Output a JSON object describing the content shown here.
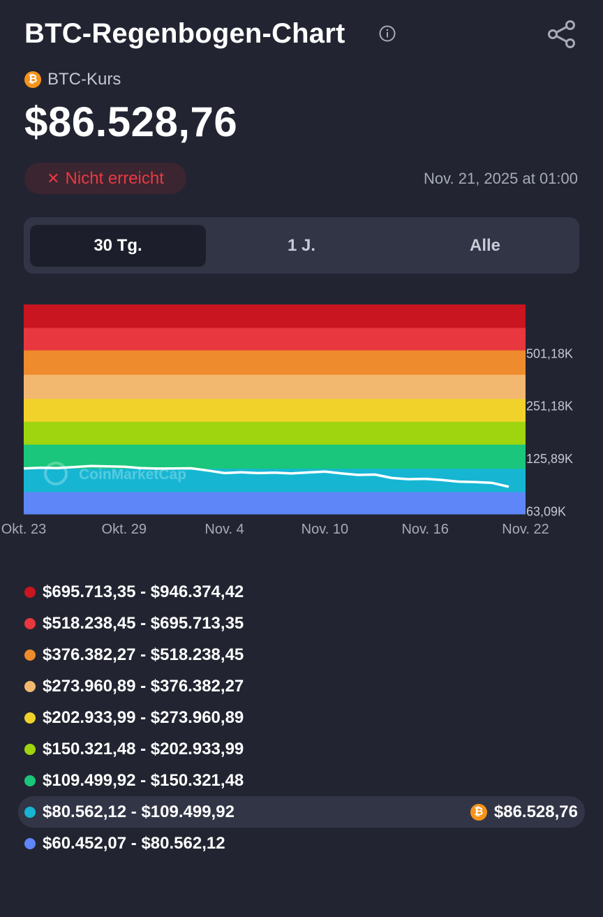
{
  "header": {
    "title": "BTC-Regenbogen-Chart",
    "info_icon": "info-circle-icon",
    "share_icon": "share-icon"
  },
  "price": {
    "coin_icon_glyph": "₿",
    "label": "BTC-Kurs",
    "value": "$86.528,76"
  },
  "status": {
    "icon": "✕",
    "label": "Nicht erreicht",
    "timestamp": "Nov. 21, 2025 at 01:00"
  },
  "tabs": [
    {
      "label": "30 Tg.",
      "active": true
    },
    {
      "label": "1 J.",
      "active": false
    },
    {
      "label": "Alle",
      "active": false
    }
  ],
  "chart_data": {
    "type": "area",
    "scale": "log",
    "x_labels": [
      "Okt. 23",
      "Okt. 29",
      "Nov. 4",
      "Nov. 10",
      "Nov. 16",
      "Nov. 22"
    ],
    "y_labels": [
      "501,18K",
      "251,18K",
      "125,89K",
      "63,09K"
    ],
    "y_ticks": [
      501180,
      251180,
      125890,
      63090
    ],
    "bands": [
      {
        "color": "#c9151f",
        "from": 695713.35,
        "to": 946374.42
      },
      {
        "color": "#e8373f",
        "from": 518238.45,
        "to": 695713.35
      },
      {
        "color": "#ee8b2c",
        "from": 376382.27,
        "to": 518238.45
      },
      {
        "color": "#f3b870",
        "from": 273960.89,
        "to": 376382.27
      },
      {
        "color": "#f0d22b",
        "from": 202933.99,
        "to": 273960.89
      },
      {
        "color": "#9fd50f",
        "from": 150321.48,
        "to": 202933.99
      },
      {
        "color": "#19c67b",
        "from": 109499.92,
        "to": 150321.48
      },
      {
        "color": "#16b6d3",
        "from": 80562.12,
        "to": 109499.92
      },
      {
        "color": "#5f86f8",
        "from": 60452.07,
        "to": 80562.12
      }
    ],
    "series": [
      {
        "color": "#ffffff",
        "x": [
          "2025-10-23",
          "2025-10-24",
          "2025-10-25",
          "2025-10-26",
          "2025-10-27",
          "2025-10-28",
          "2025-10-29",
          "2025-10-30",
          "2025-10-31",
          "2025-11-01",
          "2025-11-02",
          "2025-11-03",
          "2025-11-04",
          "2025-11-05",
          "2025-11-06",
          "2025-11-07",
          "2025-11-08",
          "2025-11-09",
          "2025-11-10",
          "2025-11-11",
          "2025-11-12",
          "2025-11-13",
          "2025-11-14",
          "2025-11-15",
          "2025-11-16",
          "2025-11-17",
          "2025-11-18",
          "2025-11-19",
          "2025-11-20",
          "2025-11-21"
        ],
        "values": [
          110000,
          111000,
          110500,
          112000,
          113500,
          113000,
          112500,
          110500,
          109800,
          110000,
          110200,
          107000,
          103500,
          104500,
          103500,
          104000,
          103000,
          104300,
          105500,
          103000,
          101000,
          101500,
          97000,
          95500,
          96000,
          94500,
          92500,
          92000,
          91000,
          86528.76
        ]
      }
    ],
    "watermark": "CoinMarketCap"
  },
  "legend": {
    "colors": [
      "#c9151f",
      "#e8373f",
      "#ee8b2c",
      "#f3b870",
      "#f0d22b",
      "#9fd50f",
      "#19c67b",
      "#16b6d3",
      "#5f86f8"
    ],
    "ranges": [
      "$695.713,35 - $946.374,42",
      "$518.238,45 - $695.713,35",
      "$376.382,27 - $518.238,45",
      "$273.960,89 - $376.382,27",
      "$202.933,99 - $273.960,89",
      "$150.321,48 - $202.933,99",
      "$109.499,92 - $150.321,48",
      "$80.562,12 - $109.499,92",
      "$60.452,07 - $80.562,12"
    ],
    "current_index": 7,
    "current_value": "$86.528,76"
  }
}
